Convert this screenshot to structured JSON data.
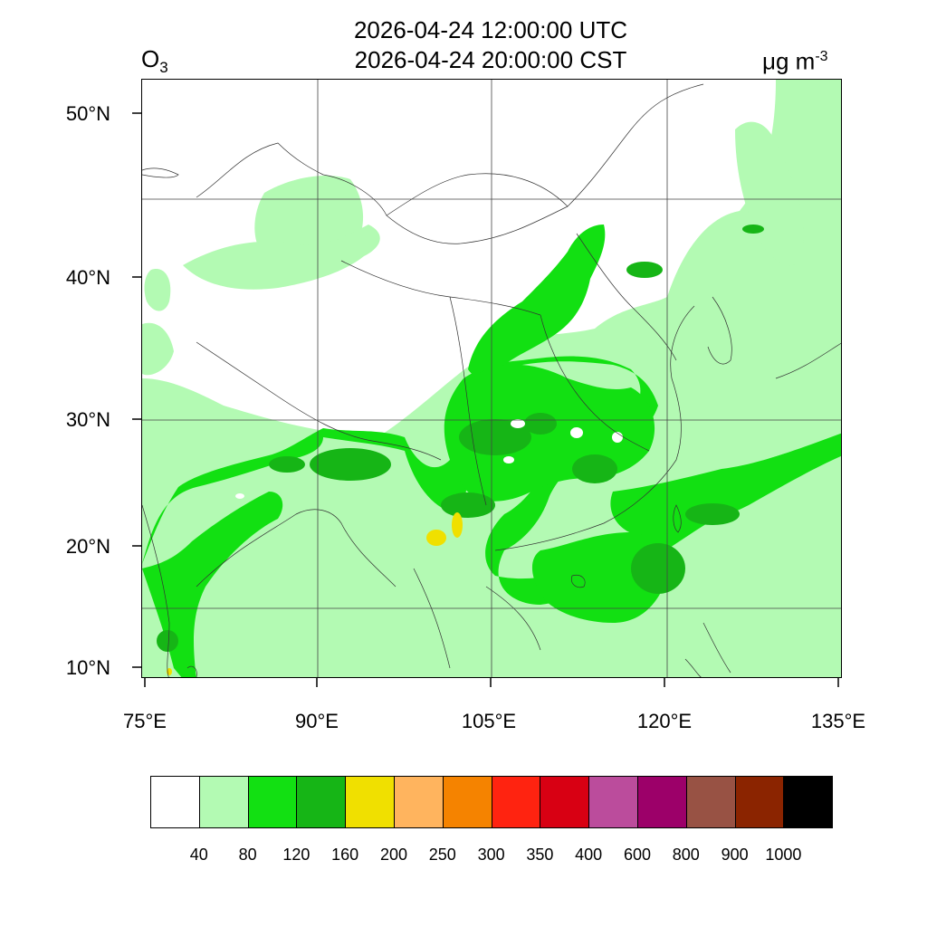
{
  "header": {
    "time_utc": "2026-04-24 12:00:00 UTC",
    "time_cst": "2026-04-24 20:00:00 CST",
    "species_main": "O",
    "species_sub": "3",
    "unit_main": "μg m",
    "unit_sup": "-3"
  },
  "axes": {
    "lat_labels": [
      "50°N",
      "40°N",
      "30°N",
      "20°N",
      "10°N"
    ],
    "lon_labels": [
      "75°E",
      "90°E",
      "105°E",
      "120°E",
      "135°E"
    ]
  },
  "colorbar": {
    "colors": [
      "#ffffff",
      "#b3fab3",
      "#12e012",
      "#16b516",
      "#f0e000",
      "#ffb45e",
      "#f58300",
      "#ff2310",
      "#d80013",
      "#bb4c9c",
      "#9c0069",
      "#985244",
      "#8b2400",
      "#000000"
    ],
    "labels": [
      "40",
      "80",
      "120",
      "160",
      "200",
      "250",
      "300",
      "350",
      "400",
      "600",
      "800",
      "900",
      "1000"
    ]
  },
  "map": {
    "lon_range": [
      75,
      135
    ],
    "lat_range": [
      9,
      52
    ],
    "fill_colors": {
      "light": "#b3fab3",
      "green": "#12e012",
      "dark": "#16b516",
      "yellow": "#f0e000"
    }
  }
}
